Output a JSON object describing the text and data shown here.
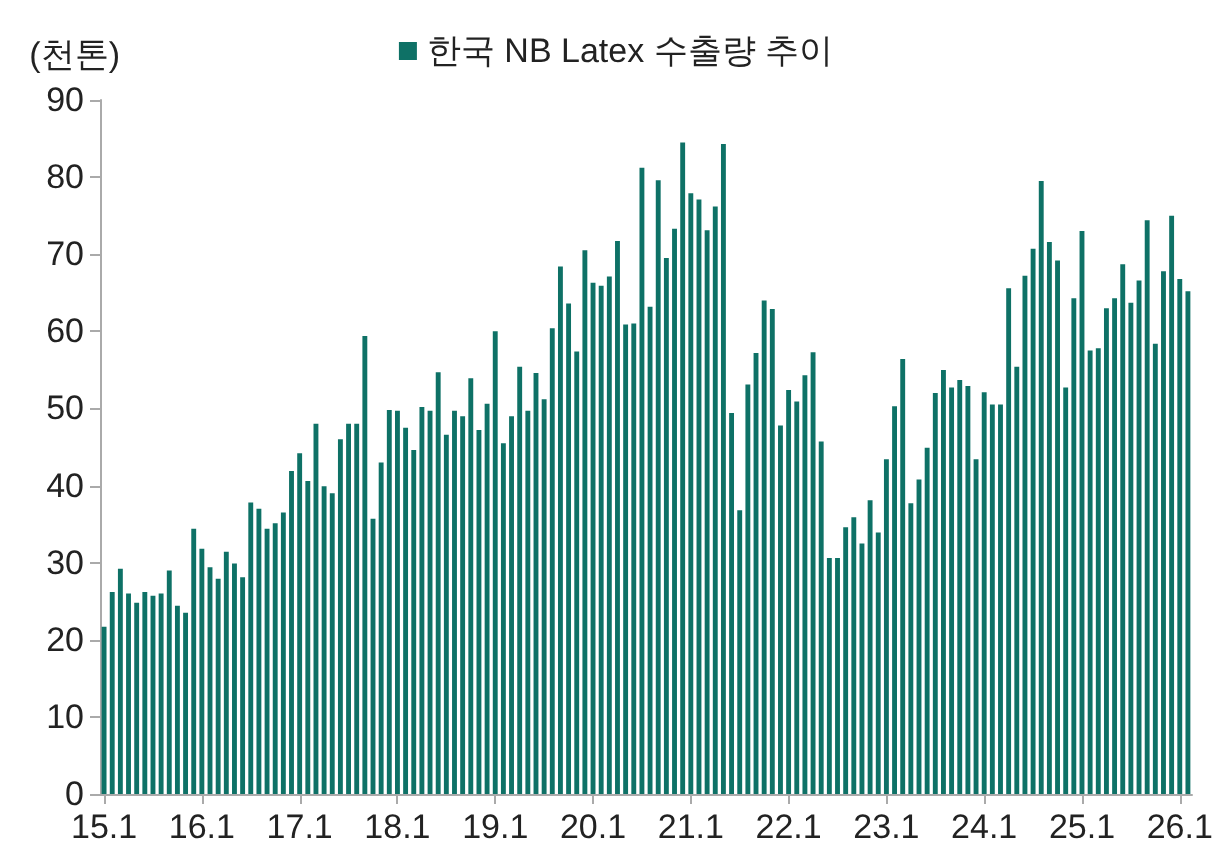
{
  "chart_data": {
    "type": "bar",
    "ylabel": "(천톤)",
    "categories": [
      "15.1",
      null,
      null,
      null,
      null,
      null,
      null,
      null,
      null,
      null,
      null,
      null,
      "16.1",
      null,
      null,
      null,
      null,
      null,
      null,
      null,
      null,
      null,
      null,
      null,
      "17.1",
      null,
      null,
      null,
      null,
      null,
      null,
      null,
      null,
      null,
      null,
      null,
      "18.1",
      null,
      null,
      null,
      null,
      null,
      null,
      null,
      null,
      null,
      null,
      null,
      "19.1",
      null,
      null,
      null,
      null,
      null,
      null,
      null,
      null,
      null,
      null,
      null,
      "20.1",
      null,
      null,
      null,
      null,
      null,
      null,
      null,
      null,
      null,
      null,
      null,
      "21.1",
      null,
      null,
      null,
      null,
      null,
      null,
      null,
      null,
      null,
      null,
      null,
      "22.1",
      null,
      null,
      null,
      null,
      null,
      null,
      null,
      null,
      null,
      null,
      null,
      "23.1",
      null,
      null,
      null,
      null,
      null,
      null,
      null,
      null,
      null,
      null,
      null,
      "24.1",
      null,
      null,
      null,
      null,
      null,
      null,
      null,
      null,
      null,
      null,
      null,
      "25.1",
      null,
      null,
      null,
      null,
      null,
      null,
      null,
      null,
      null,
      null,
      null,
      "26.1",
      null
    ],
    "series": [
      {
        "name": "한국 NB Latex 수출량 추이",
        "color": "#0e7166",
        "values": [
          21.7,
          26.2,
          29.2,
          26,
          24.8,
          26.2,
          25.7,
          26,
          29,
          24.4,
          23.5,
          34.4,
          31.8,
          29.4,
          27.9,
          31.4,
          29.9,
          28.1,
          37.8,
          37,
          34.4,
          35.1,
          36.5,
          41.9,
          44.2,
          40.6,
          48,
          39.9,
          39,
          46,
          48,
          48,
          59.4,
          35.7,
          43,
          49.8,
          49.7,
          47.5,
          44.6,
          50.2,
          49.7,
          54.7,
          46.6,
          49.7,
          49,
          53.9,
          47.2,
          50.6,
          60,
          45.5,
          49,
          55.4,
          49.7,
          54.6,
          51.2,
          60.4,
          68.4,
          63.6,
          57.4,
          70.5,
          66.3,
          65.9,
          67.1,
          71.7,
          60.9,
          61,
          81.2,
          63.2,
          79.6,
          69.5,
          73.3,
          84.5,
          77.9,
          77.1,
          73.1,
          76.2,
          84.3,
          49.4,
          36.8,
          53.1,
          57.2,
          64,
          62.9,
          47.8,
          52.4,
          50.9,
          54.3,
          57.3,
          45.7,
          30.6,
          30.6,
          34.6,
          35.9,
          32.5,
          38.1,
          33.9,
          43.4,
          50.3,
          56.4,
          37.7,
          40.8,
          44.9,
          52,
          55,
          52.7,
          53.7,
          52.9,
          43.4,
          52.1,
          50.5,
          50.5,
          65.6,
          55.4,
          67.2,
          70.7,
          79.5,
          71.6,
          69.2,
          52.7,
          64.3,
          73,
          57.5,
          57.8,
          63,
          64.3,
          68.7,
          63.7,
          66.6,
          74.4,
          58.4,
          67.8,
          75,
          66.8,
          65.2
        ]
      }
    ],
    "ylim": [
      0,
      90
    ],
    "yticks": [
      0,
      10,
      20,
      30,
      40,
      50,
      60,
      70,
      80,
      90
    ],
    "grid": false,
    "legend": "top"
  }
}
